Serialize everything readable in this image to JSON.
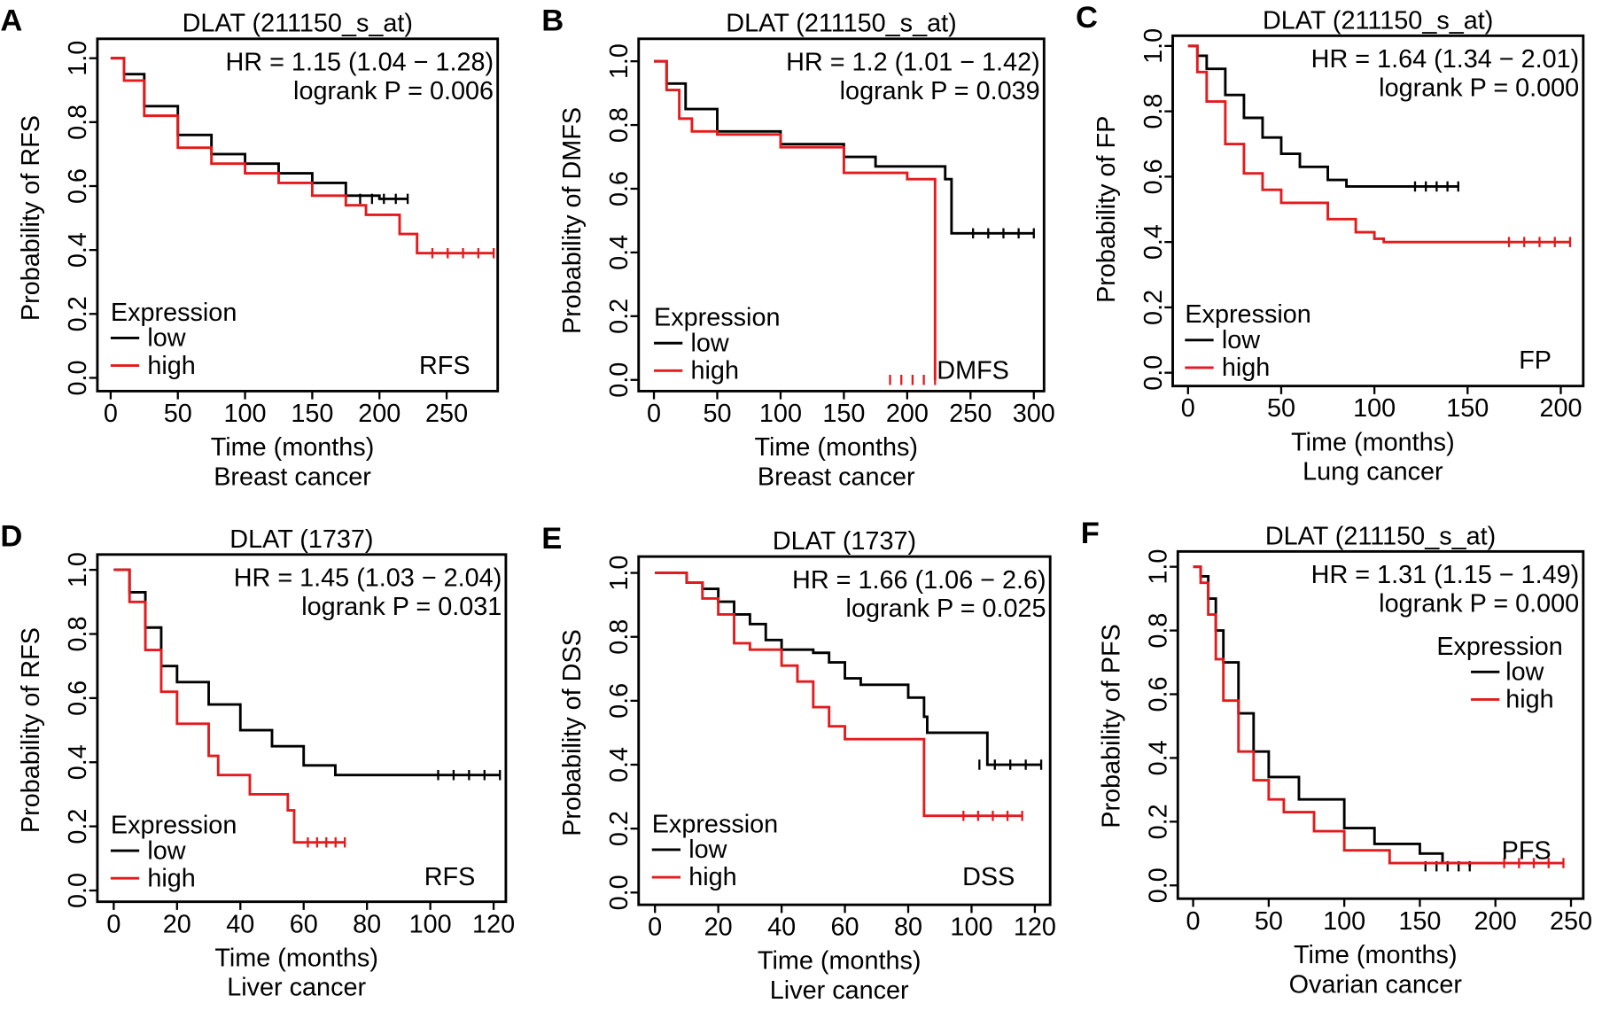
{
  "colors": {
    "low": "#000000",
    "high": "#e41a1c"
  },
  "legend_title": "Expression",
  "legend_labels": {
    "low": "low",
    "high": "high"
  },
  "xlabel": "Time (months)",
  "chart_data": [
    {
      "panel": "A",
      "type": "line",
      "title": "DLAT (211150_s_at)",
      "hr": "HR = 1.15 (1.04 − 1.28)",
      "p": "logrank P = 0.006",
      "ylabel": "Probability of RFS",
      "xlabel": "Time (months)",
      "subtitle": "Breast cancer",
      "endpoint": "RFS",
      "xticks": [
        0,
        50,
        100,
        150,
        200,
        250
      ],
      "xlim": [
        0,
        285
      ],
      "yticks": [
        "0.0",
        "0.2",
        "0.4",
        "0.6",
        "0.8",
        "1.0"
      ],
      "ylim": [
        0,
        1
      ],
      "series": [
        {
          "name": "low",
          "x": [
            0,
            10,
            25,
            50,
            75,
            100,
            125,
            150,
            175,
            200,
            221
          ],
          "y": [
            1,
            0.95,
            0.85,
            0.76,
            0.7,
            0.67,
            0.64,
            0.61,
            0.57,
            0.56,
            0.56
          ]
        },
        {
          "name": "high",
          "x": [
            0,
            10,
            25,
            50,
            75,
            100,
            125,
            150,
            175,
            190,
            215,
            228,
            285
          ],
          "y": [
            1,
            0.93,
            0.82,
            0.72,
            0.67,
            0.64,
            0.61,
            0.57,
            0.54,
            0.51,
            0.45,
            0.39,
            0.39
          ]
        }
      ]
    },
    {
      "panel": "B",
      "type": "line",
      "title": "DLAT (211150_s_at)",
      "hr": "HR = 1.2 (1.01 − 1.42)",
      "p": "logrank P = 0.039",
      "ylabel": "Probability of DMFS",
      "xlabel": "Time (months)",
      "subtitle": "Breast cancer",
      "endpoint": "DMFS",
      "xticks": [
        0,
        50,
        100,
        150,
        200,
        250,
        300
      ],
      "xlim": [
        0,
        300
      ],
      "yticks": [
        "0.0",
        "0.2",
        "0.4",
        "0.6",
        "0.8",
        "1.0"
      ],
      "ylim": [
        0,
        1
      ],
      "series": [
        {
          "name": "low",
          "x": [
            0,
            10,
            25,
            50,
            100,
            150,
            175,
            200,
            230,
            235,
            300
          ],
          "y": [
            1,
            0.93,
            0.85,
            0.78,
            0.74,
            0.7,
            0.67,
            0.67,
            0.63,
            0.46,
            0.46
          ]
        },
        {
          "name": "high",
          "x": [
            0,
            10,
            20,
            30,
            50,
            100,
            150,
            200,
            222
          ],
          "y": [
            1,
            0.91,
            0.82,
            0.78,
            0.77,
            0.73,
            0.65,
            0.63,
            0.0
          ]
        }
      ]
    },
    {
      "panel": "C",
      "type": "line",
      "title": "DLAT (211150_s_at)",
      "hr": "HR = 1.64 (1.34 − 2.01)",
      "p": "logrank P = 0.000",
      "ylabel": "Probability of FP",
      "xlabel": "Time (months)",
      "subtitle": "Lung cancer",
      "endpoint": "FP",
      "xticks": [
        0,
        50,
        100,
        150,
        200
      ],
      "xlim": [
        0,
        205
      ],
      "yticks": [
        "0.0",
        "0.2",
        "0.4",
        "0.6",
        "0.8",
        "1.0"
      ],
      "ylim": [
        0,
        1
      ],
      "series": [
        {
          "name": "low",
          "x": [
            0,
            5,
            10,
            20,
            30,
            40,
            50,
            60,
            75,
            85,
            145
          ],
          "y": [
            1,
            0.97,
            0.93,
            0.85,
            0.78,
            0.72,
            0.67,
            0.63,
            0.59,
            0.57,
            0.57
          ]
        },
        {
          "name": "high",
          "x": [
            0,
            5,
            10,
            20,
            30,
            40,
            50,
            75,
            90,
            100,
            105,
            205
          ],
          "y": [
            1,
            0.92,
            0.83,
            0.7,
            0.61,
            0.56,
            0.52,
            0.47,
            0.43,
            0.41,
            0.4,
            0.4
          ]
        }
      ]
    },
    {
      "panel": "D",
      "type": "line",
      "title": "DLAT (1737)",
      "hr": "HR = 1.45 (1.03 − 2.04)",
      "p": "logrank P = 0.031",
      "ylabel": "Probability of RFS",
      "xlabel": "Time (months)",
      "subtitle": "Liver cancer",
      "endpoint": "RFS",
      "xticks": [
        0,
        20,
        40,
        60,
        80,
        100,
        120
      ],
      "xlim": [
        0,
        122
      ],
      "yticks": [
        "0.0",
        "0.2",
        "0.4",
        "0.6",
        "0.8",
        "1.0"
      ],
      "ylim": [
        0,
        1
      ],
      "series": [
        {
          "name": "low",
          "x": [
            0,
            5,
            10,
            15,
            20,
            30,
            40,
            50,
            60,
            70,
            122
          ],
          "y": [
            1,
            0.93,
            0.82,
            0.7,
            0.65,
            0.58,
            0.5,
            0.45,
            0.39,
            0.36,
            0.36
          ]
        },
        {
          "name": "high",
          "x": [
            0,
            5,
            10,
            15,
            20,
            30,
            33,
            43,
            55,
            57,
            73
          ],
          "y": [
            1,
            0.9,
            0.75,
            0.62,
            0.52,
            0.42,
            0.36,
            0.3,
            0.25,
            0.15,
            0.15
          ]
        }
      ]
    },
    {
      "panel": "E",
      "type": "line",
      "title": "DLAT (1737)",
      "hr": "HR = 1.66 (1.06 − 2.6)",
      "p": "logrank P = 0.025",
      "ylabel": "Probability of DSS",
      "xlabel": "Time (months)",
      "subtitle": "Liver cancer",
      "endpoint": "DSS",
      "xticks": [
        0,
        20,
        40,
        60,
        80,
        100,
        120
      ],
      "xlim": [
        0,
        122
      ],
      "yticks": [
        "0.0",
        "0.2",
        "0.4",
        "0.6",
        "0.8",
        "1.0"
      ],
      "ylim": [
        0,
        1
      ],
      "series": [
        {
          "name": "low",
          "x": [
            0,
            10,
            15,
            20,
            25,
            30,
            35,
            40,
            50,
            55,
            60,
            65,
            80,
            85,
            86,
            105,
            122
          ],
          "y": [
            1,
            0.97,
            0.95,
            0.91,
            0.87,
            0.84,
            0.79,
            0.76,
            0.75,
            0.72,
            0.67,
            0.65,
            0.61,
            0.55,
            0.5,
            0.4,
            0.4
          ]
        },
        {
          "name": "high",
          "x": [
            0,
            10,
            15,
            20,
            25,
            30,
            40,
            45,
            50,
            55,
            60,
            85,
            116
          ],
          "y": [
            1,
            0.97,
            0.92,
            0.87,
            0.78,
            0.76,
            0.71,
            0.66,
            0.58,
            0.52,
            0.48,
            0.24,
            0.24
          ]
        }
      ]
    },
    {
      "panel": "F",
      "type": "line",
      "title": "DLAT (211150_s_at)",
      "hr": "HR = 1.31 (1.15 − 1.49)",
      "p": "logrank P = 0.000",
      "ylabel": "Probability of PFS",
      "xlabel": "Time (months)",
      "subtitle": "Ovarian cancer",
      "endpoint": "PFS",
      "xticks": [
        0,
        50,
        100,
        150,
        200,
        250
      ],
      "xlim": [
        0,
        245
      ],
      "yticks": [
        "0.0",
        "0.2",
        "0.4",
        "0.6",
        "0.8",
        "1.0"
      ],
      "ylim": [
        0,
        1
      ],
      "legend": "top-right",
      "series": [
        {
          "name": "low",
          "x": [
            0,
            5,
            10,
            15,
            20,
            30,
            40,
            50,
            70,
            100,
            120,
            150,
            165,
            183
          ],
          "y": [
            1,
            0.97,
            0.9,
            0.8,
            0.7,
            0.54,
            0.42,
            0.34,
            0.27,
            0.18,
            0.13,
            0.1,
            0.07,
            0.06
          ]
        },
        {
          "name": "high",
          "x": [
            0,
            5,
            10,
            15,
            20,
            30,
            40,
            50,
            60,
            80,
            100,
            130,
            245
          ],
          "y": [
            1,
            0.95,
            0.85,
            0.71,
            0.58,
            0.42,
            0.33,
            0.27,
            0.23,
            0.17,
            0.11,
            0.07,
            0.07
          ]
        }
      ]
    }
  ]
}
